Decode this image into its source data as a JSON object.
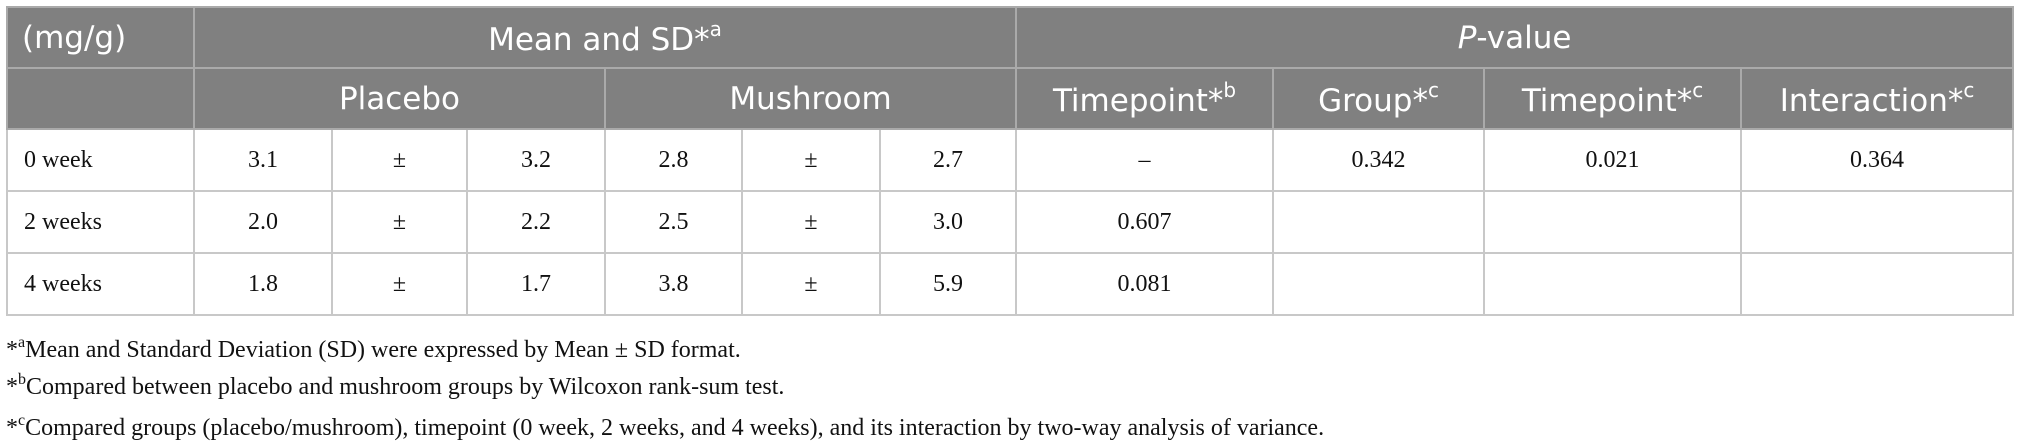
{
  "table": {
    "header_row1": {
      "unit": "(mg/g)",
      "mean_sd": {
        "text": "Mean and SD*",
        "sup": "a"
      },
      "p_value": {
        "italic": "P",
        "text": "-value"
      }
    },
    "header_row2": {
      "placebo": "Placebo",
      "mushroom": "Mushroom",
      "columns": [
        {
          "text": "Timepoint*",
          "sup": "b"
        },
        {
          "text": "Group*",
          "sup": "c"
        },
        {
          "text": "Timepoint*",
          "sup": "c"
        },
        {
          "text": "Interaction*",
          "sup": "c"
        }
      ]
    },
    "rows": [
      [
        "0 week",
        "3.1",
        "±",
        "3.2",
        "2.8",
        "±",
        "2.7",
        "–",
        "0.342",
        "0.021",
        "0.364"
      ],
      [
        "2 weeks",
        "2.0",
        "±",
        "2.2",
        "2.5",
        "±",
        "3.0",
        "0.607",
        null,
        null,
        null
      ],
      [
        "4 weeks",
        "1.8",
        "±",
        "1.7",
        "3.8",
        "±",
        "5.9",
        "0.081",
        null,
        null,
        null
      ]
    ]
  },
  "footnotes": [
    {
      "mark": "*",
      "sup": "a",
      "text": "Mean and Standard Deviation (SD) were expressed by Mean ± SD format."
    },
    {
      "mark": "*",
      "sup": "b",
      "text": "Compared between placebo and mushroom groups by Wilcoxon rank-sum test."
    },
    {
      "mark": "*",
      "sup": "c",
      "text": "Compared groups (placebo/mushroom), timepoint (0 week, 2 weeks, and 4 weeks), and its interaction by two-way analysis of variance."
    }
  ]
}
